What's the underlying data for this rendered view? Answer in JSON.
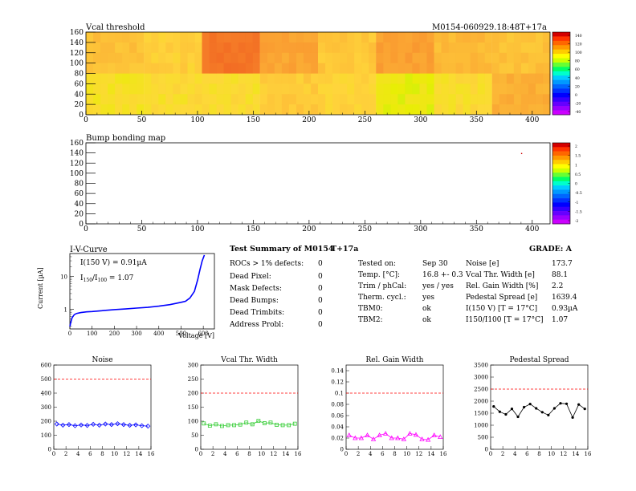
{
  "vcal_map": {
    "title": "Vcal threshold",
    "id": "M0154-060929.18:48T+17a",
    "x_ticks": [
      "0",
      "50",
      "100",
      "150",
      "200",
      "250",
      "300",
      "350",
      "400"
    ],
    "y_ticks": [
      "0",
      "20",
      "40",
      "60",
      "80",
      "100",
      "120",
      "140",
      "160"
    ],
    "scale_labels": [
      "140",
      "120",
      "100",
      "80",
      "60",
      "40",
      "20",
      "0",
      "-20",
      "-40"
    ]
  },
  "bump_map": {
    "title": "Bump bonding map",
    "x_ticks": [
      "0",
      "50",
      "100",
      "150",
      "200",
      "250",
      "300",
      "350",
      "400"
    ],
    "y_ticks": [
      "0",
      "20",
      "40",
      "60",
      "80",
      "100",
      "120",
      "140",
      "160"
    ],
    "scale_labels": [
      "2",
      "1.5",
      "1",
      "0.5",
      "0",
      "-0.5",
      "-1",
      "-1.5",
      "-2"
    ]
  },
  "iv": {
    "title": "I-V-Curve",
    "xlabel": "Voltage [V]",
    "ylabel": "Current [µA]",
    "ann1": "I(150 V) = 0.91µA",
    "ann2": "I150/I100 = 1.07",
    "x_ticks": [
      "0",
      "100",
      "200",
      "300",
      "400",
      "500",
      "600"
    ],
    "y_ticks": [
      "1",
      "10"
    ]
  },
  "summary": {
    "title": "Test Summary of M0154",
    "tag": "T+17a",
    "grade": "GRADE:  A",
    "left": [
      {
        "label": "ROCs > 1% defects:",
        "value": "0"
      },
      {
        "label": "Dead Pixel:",
        "value": "0"
      },
      {
        "label": "Mask Defects:",
        "value": "0"
      },
      {
        "label": "Dead Bumps:",
        "value": "0"
      },
      {
        "label": "Dead Trimbits:",
        "value": "0"
      },
      {
        "label": "Address Probl:",
        "value": "0"
      }
    ],
    "middle": [
      {
        "label": "Tested on:",
        "value": "Sep 30"
      },
      {
        "label": "Temp. [°C]:",
        "value": "16.8 +- 0.3"
      },
      {
        "label": "Trim / phCal:",
        "value": "yes / yes"
      },
      {
        "label": "Therm. cycl.:",
        "value": "yes"
      },
      {
        "label": "TBM0:",
        "value": "ok"
      },
      {
        "label": "TBM2:",
        "value": "ok"
      }
    ],
    "right": [
      {
        "label": "Noise [e]",
        "value": "173.7"
      },
      {
        "label": "Vcal Thr. Width [e]",
        "value": "88.1"
      },
      {
        "label": "Rel. Gain Width [%]",
        "value": "2.2"
      },
      {
        "label": "Pedestal Spread [e]",
        "value": "1639.4"
      },
      {
        "label": "I(150 V) [T = 17°C]",
        "value": "0.93µA"
      },
      {
        "label": "I150/I100  [T = 17°C]",
        "value": "1.07"
      }
    ]
  },
  "chart_data": [
    {
      "type": "heatmap",
      "title": "Vcal threshold",
      "xlim": [
        0,
        416
      ],
      "ylim": [
        0,
        160
      ],
      "z_range": [
        -40,
        140
      ],
      "cells": [
        {
          "x": [
            0,
            52
          ],
          "y": [
            0,
            80
          ],
          "value": 70
        },
        {
          "x": [
            0,
            52
          ],
          "y": [
            80,
            160
          ],
          "value": 80
        },
        {
          "x": [
            52,
            104
          ],
          "y": [
            0,
            80
          ],
          "value": 72
        },
        {
          "x": [
            52,
            104
          ],
          "y": [
            80,
            160
          ],
          "value": 76
        },
        {
          "x": [
            104,
            156
          ],
          "y": [
            0,
            80
          ],
          "value": 72
        },
        {
          "x": [
            104,
            156
          ],
          "y": [
            80,
            160
          ],
          "value": 104
        },
        {
          "x": [
            156,
            208
          ],
          "y": [
            0,
            80
          ],
          "value": 77
        },
        {
          "x": [
            156,
            208
          ],
          "y": [
            80,
            160
          ],
          "value": 88
        },
        {
          "x": [
            208,
            260
          ],
          "y": [
            0,
            80
          ],
          "value": 75
        },
        {
          "x": [
            208,
            260
          ],
          "y": [
            80,
            160
          ],
          "value": 78
        },
        {
          "x": [
            260,
            312
          ],
          "y": [
            0,
            80
          ],
          "value": 66
        },
        {
          "x": [
            260,
            312
          ],
          "y": [
            80,
            160
          ],
          "value": 90
        },
        {
          "x": [
            312,
            364
          ],
          "y": [
            0,
            80
          ],
          "value": 72
        },
        {
          "x": [
            312,
            364
          ],
          "y": [
            80,
            160
          ],
          "value": 82
        },
        {
          "x": [
            364,
            416
          ],
          "y": [
            0,
            80
          ],
          "value": 85
        },
        {
          "x": [
            364,
            416
          ],
          "y": [
            80,
            160
          ],
          "value": 80
        }
      ]
    },
    {
      "type": "heatmap",
      "title": "Bump bonding map",
      "xlim": [
        0,
        416
      ],
      "ylim": [
        0,
        160
      ],
      "z_range": [
        -2,
        2
      ],
      "points": [
        {
          "x": 390,
          "y": 140,
          "value": 2
        }
      ]
    },
    {
      "type": "line",
      "title": "I-V-Curve",
      "xlabel": "Voltage [V]",
      "ylabel": "Current [µA]",
      "xlim": [
        0,
        650
      ],
      "ylim": [
        0.25,
        50
      ],
      "log_y": true,
      "color": "#0000ff",
      "x": [
        0,
        5,
        10,
        20,
        30,
        50,
        75,
        100,
        150,
        200,
        250,
        300,
        350,
        400,
        450,
        500,
        520,
        540,
        560,
        575,
        585,
        595,
        605
      ],
      "y": [
        0.3,
        0.42,
        0.55,
        0.68,
        0.74,
        0.79,
        0.83,
        0.85,
        0.91,
        0.97,
        1.02,
        1.08,
        1.14,
        1.24,
        1.38,
        1.62,
        1.75,
        2.2,
        3.5,
        8,
        16,
        30,
        45
      ]
    },
    {
      "type": "line",
      "title": "Noise",
      "xlim": [
        0,
        16
      ],
      "ylim": [
        0,
        600
      ],
      "reference_line": 500,
      "color": "#0000ff",
      "marker": "diamond",
      "x": [
        0,
        1,
        2,
        3,
        4,
        5,
        6,
        7,
        8,
        9,
        10,
        11,
        12,
        13,
        14,
        15
      ],
      "y": [
        180,
        172,
        176,
        168,
        173,
        170,
        178,
        172,
        180,
        176,
        182,
        176,
        171,
        174,
        168,
        165
      ]
    },
    {
      "type": "line",
      "title": "Vcal Thr. Width",
      "xlim": [
        0,
        16
      ],
      "ylim": [
        0,
        300
      ],
      "reference_line": 200,
      "color": "#33cc33",
      "marker": "square",
      "x": [
        0,
        1,
        2,
        3,
        4,
        5,
        6,
        7,
        8,
        9,
        10,
        11,
        12,
        13,
        14,
        15
      ],
      "y": [
        92,
        84,
        89,
        83,
        86,
        86,
        88,
        95,
        89,
        101,
        93,
        95,
        87,
        86,
        86,
        91
      ]
    },
    {
      "type": "line",
      "title": "Rel. Gain Width",
      "xlim": [
        0,
        16
      ],
      "ylim": [
        0,
        0.15
      ],
      "reference_line": 0.1,
      "color": "#ff00ff",
      "marker": "triangle",
      "x": [
        0,
        1,
        2,
        3,
        4,
        5,
        6,
        7,
        8,
        9,
        10,
        11,
        12,
        13,
        14,
        15
      ],
      "y": [
        0.025,
        0.02,
        0.02,
        0.025,
        0.018,
        0.025,
        0.028,
        0.02,
        0.02,
        0.018,
        0.028,
        0.026,
        0.018,
        0.017,
        0.025,
        0.022
      ]
    },
    {
      "type": "line",
      "title": "Pedestal Spread",
      "xlim": [
        0,
        16
      ],
      "ylim": [
        0,
        3500
      ],
      "reference_line": 2500,
      "color": "#000000",
      "marker": "circle",
      "x": [
        0,
        1,
        2,
        3,
        4,
        5,
        6,
        7,
        8,
        9,
        10,
        11,
        12,
        13,
        14,
        15
      ],
      "y": [
        1780,
        1560,
        1450,
        1680,
        1350,
        1750,
        1880,
        1700,
        1540,
        1420,
        1700,
        1910,
        1890,
        1320,
        1860,
        1680
      ]
    }
  ]
}
